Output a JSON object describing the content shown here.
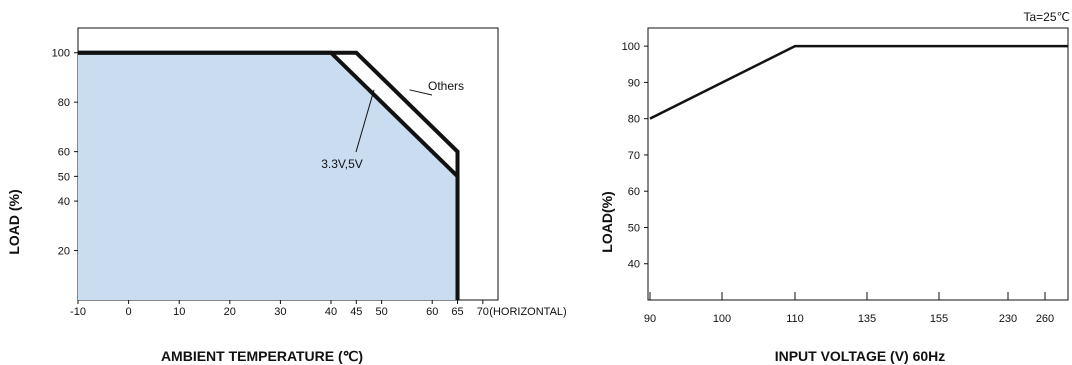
{
  "chart_data": [
    {
      "type": "line",
      "title": "",
      "xlabel": "AMBIENT TEMPERATURE (℃)",
      "ylabel": "LOAD (%)",
      "x_axis_note": "(HORIZONTAL)",
      "x_tick_labels": [
        "-10",
        "0",
        "10",
        "20",
        "30",
        "40",
        "45",
        "50",
        "60",
        "65",
        "70"
      ],
      "y_tick_labels": [
        "20",
        "40",
        "50",
        "60",
        "80",
        "100"
      ],
      "xlim": [
        -10,
        73
      ],
      "ylim": [
        0,
        110
      ],
      "grid": false,
      "series": [
        {
          "name": "Others",
          "x": [
            -10,
            45,
            65,
            65
          ],
          "y": [
            100,
            100,
            60,
            0
          ]
        },
        {
          "name": "3.3V,5V",
          "x": [
            -10,
            40,
            65,
            65
          ],
          "y": [
            100,
            100,
            50,
            0
          ]
        }
      ],
      "fill_under": "3.3V,5V",
      "fill_color": "#c9dcf0"
    },
    {
      "type": "line",
      "title": "",
      "xlabel": "INPUT VOLTAGE (V) 60Hz",
      "ylabel": "LOAD(%)",
      "annotation": "Ta=25℃",
      "x_tick_labels": [
        "90",
        "100",
        "110",
        "135",
        "155",
        "230",
        "260"
      ],
      "y_tick_labels": [
        "40",
        "50",
        "60",
        "70",
        "80",
        "90",
        "100"
      ],
      "ylim": [
        30,
        105
      ],
      "grid": false,
      "series": [
        {
          "name": "",
          "x": [
            "90",
            "110",
            "264"
          ],
          "y": [
            80,
            100,
            100
          ]
        }
      ]
    }
  ]
}
